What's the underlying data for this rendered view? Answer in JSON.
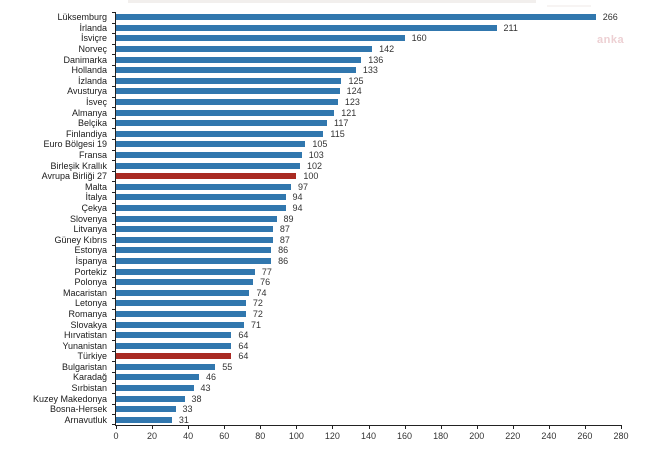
{
  "watermark": {
    "text": "anka",
    "color": "#edd0d3"
  },
  "chart_data": {
    "type": "bar",
    "orientation": "horizontal",
    "title": "",
    "xlabel": "",
    "ylabel": "",
    "categories": [
      "Lüksemburg",
      "İrlanda",
      "İsviçre",
      "Norveç",
      "Danimarka",
      "Hollanda",
      "İzlanda",
      "Avusturya",
      "İsveç",
      "Almanya",
      "Belçika",
      "Finlandiya",
      "Euro Bölgesi 19",
      "Fransa",
      "Birleşik Krallık",
      "Avrupa Birliği 27",
      "Malta",
      "İtalya",
      "Çekya",
      "Slovenya",
      "Litvanya",
      "Güney Kıbrıs",
      "Estonya",
      "İspanya",
      "Portekiz",
      "Polonya",
      "Macaristan",
      "Letonya",
      "Romanya",
      "Slovakya",
      "Hırvatistan",
      "Yunanistan",
      "Türkiye",
      "Bulgaristan",
      "Karadağ",
      "Sırbistan",
      "Kuzey Makedonya",
      "Bosna-Hersek",
      "Arnavutluk"
    ],
    "values": [
      266,
      211,
      160,
      142,
      136,
      133,
      125,
      124,
      123,
      121,
      117,
      115,
      105,
      103,
      102,
      100,
      97,
      94,
      94,
      89,
      87,
      87,
      86,
      86,
      77,
      76,
      74,
      72,
      72,
      71,
      64,
      64,
      64,
      55,
      46,
      43,
      38,
      33,
      31
    ],
    "highlighted_categories": [
      "Avrupa Birliği 27",
      "Türkiye"
    ],
    "bar_color": "#3177AE",
    "highlight_color": "#A92A22",
    "xlim": [
      0,
      280
    ],
    "x_ticks": [
      0,
      20,
      40,
      60,
      80,
      100,
      120,
      140,
      160,
      180,
      200,
      220,
      240,
      260,
      280
    ],
    "grid": false,
    "legend": "none",
    "value_labels_shown": true
  }
}
